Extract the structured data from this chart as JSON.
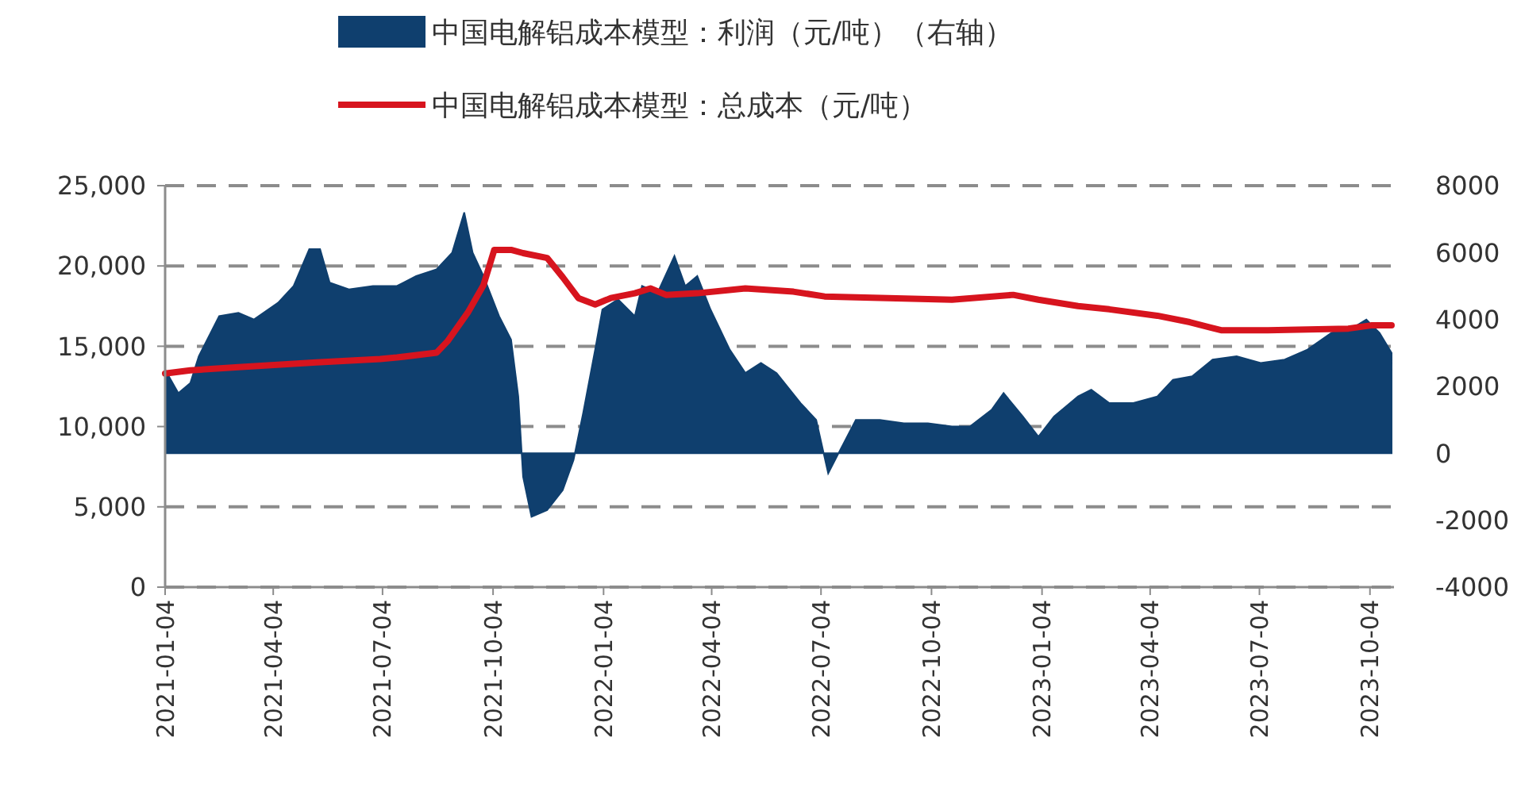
{
  "chart_data": {
    "type": "line",
    "legend": "top",
    "grid": "y",
    "xlim": [
      "2021-01-04",
      "2023-10-24"
    ],
    "xticks": [
      "2021-01-04",
      "2021-04-04",
      "2021-07-04",
      "2021-10-04",
      "2022-01-04",
      "2022-04-04",
      "2022-07-04",
      "2022-10-04",
      "2023-01-04",
      "2023-04-04",
      "2023-07-04",
      "2023-10-04"
    ],
    "ylim": [
      0,
      25000
    ],
    "yticks": [
      {
        "value": 0,
        "label": "0"
      },
      {
        "value": 5000,
        "label": "5,000"
      },
      {
        "value": 10000,
        "label": "10,000"
      },
      {
        "value": 15000,
        "label": "15,000"
      },
      {
        "value": 20000,
        "label": "20,000"
      },
      {
        "value": 25000,
        "label": "25,000"
      }
    ],
    "y2lim": [
      -4000,
      8000
    ],
    "y2ticks": [
      -4000,
      -2000,
      0,
      2000,
      4000,
      6000,
      8000
    ],
    "series": [
      {
        "name": "中国电解铝成本模型：利润（元/吨）（右轴）",
        "type": "area",
        "axis": "y2",
        "color": "#0f3f6e",
        "x": [
          "2021-01-04",
          "2021-01-15",
          "2021-01-25",
          "2021-02-01",
          "2021-02-18",
          "2021-03-06",
          "2021-03-19",
          "2021-04-08",
          "2021-04-21",
          "2021-05-04",
          "2021-05-13",
          "2021-05-21",
          "2021-06-06",
          "2021-06-26",
          "2021-07-16",
          "2021-08-01",
          "2021-08-18",
          "2021-08-31",
          "2021-09-10",
          "2021-09-17",
          "2021-09-26",
          "2021-10-09",
          "2021-10-19",
          "2021-10-25",
          "2021-10-29",
          "2021-11-05",
          "2021-11-18",
          "2021-12-01",
          "2021-12-10",
          "2021-12-18",
          "2021-12-28",
          "2022-01-03",
          "2022-01-16",
          "2022-01-30",
          "2022-02-05",
          "2022-02-18",
          "2022-03-04",
          "2022-03-13",
          "2022-03-23",
          "2022-04-03",
          "2022-04-19",
          "2022-05-02",
          "2022-05-15",
          "2022-05-28",
          "2022-06-17",
          "2022-06-30",
          "2022-07-10",
          "2022-07-20",
          "2022-08-02",
          "2022-08-22",
          "2022-09-11",
          "2022-10-01",
          "2022-10-21",
          "2022-11-05",
          "2022-11-23",
          "2022-12-03",
          "2022-12-19",
          "2023-01-01",
          "2023-01-14",
          "2023-02-03",
          "2023-02-14",
          "2023-03-01",
          "2023-03-21",
          "2023-04-10",
          "2023-04-23",
          "2023-05-09",
          "2023-05-26",
          "2023-06-15",
          "2023-07-05",
          "2023-07-25",
          "2023-08-13",
          "2023-09-02",
          "2023-09-22",
          "2023-10-01",
          "2023-10-12",
          "2023-10-22"
        ],
        "values": [
          2500,
          1800,
          2100,
          2900,
          4100,
          4200,
          4000,
          4500,
          5000,
          6100,
          6100,
          5100,
          4900,
          5000,
          5000,
          5300,
          5500,
          6000,
          7200,
          6000,
          5300,
          4100,
          3400,
          1700,
          -700,
          -1900,
          -1700,
          -1100,
          -200,
          1200,
          3100,
          4300,
          4600,
          4100,
          5000,
          4800,
          5900,
          5000,
          5300,
          4300,
          3100,
          2400,
          2700,
          2400,
          1500,
          1000,
          -600,
          100,
          1000,
          1000,
          900,
          900,
          800,
          800,
          1300,
          1800,
          1100,
          500,
          1100,
          1700,
          1900,
          1500,
          1500,
          1700,
          2200,
          2300,
          2800,
          2900,
          2700,
          2800,
          3100,
          3600,
          3800,
          4000,
          3600,
          3000
        ]
      },
      {
        "name": "中国电解铝成本模型：总成本（元/吨）",
        "color": "#d7141e",
        "x": [
          "2021-01-04",
          "2021-01-25",
          "2021-03-06",
          "2021-05-10",
          "2021-07-02",
          "2021-07-16",
          "2021-08-18",
          "2021-08-27",
          "2021-09-13",
          "2021-09-26",
          "2021-10-05",
          "2021-10-19",
          "2021-10-29",
          "2021-11-18",
          "2021-12-01",
          "2021-12-14",
          "2021-12-28",
          "2022-01-10",
          "2022-01-30",
          "2022-02-12",
          "2022-02-25",
          "2022-03-23",
          "2022-05-02",
          "2022-06-11",
          "2022-07-07",
          "2022-08-29",
          "2022-10-21",
          "2022-12-11",
          "2023-01-01",
          "2023-02-03",
          "2023-03-01",
          "2023-04-10",
          "2023-05-07",
          "2023-06-02",
          "2023-07-11",
          "2023-09-16",
          "2023-10-05",
          "2023-10-22"
        ],
        "values": [
          13300,
          13500,
          13700,
          14000,
          14200,
          14300,
          14600,
          15300,
          17100,
          18800,
          21000,
          21000,
          20800,
          20500,
          19300,
          18000,
          17600,
          18000,
          18300,
          18600,
          18200,
          18300,
          18600,
          18400,
          18100,
          18000,
          17900,
          18200,
          17900,
          17500,
          17300,
          16900,
          16500,
          16000,
          16000,
          16100,
          16300,
          16300
        ]
      }
    ]
  }
}
